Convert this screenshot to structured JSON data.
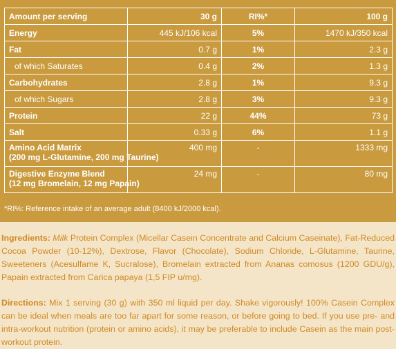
{
  "table": {
    "header": {
      "label": "Amount per serving",
      "serving": "30 g",
      "ri": "RI%*",
      "per100": "100 g"
    },
    "rows": [
      {
        "name": "Energy",
        "serving": "445 kJ/106 kcal",
        "ri": "5%",
        "per100": "1470 kJ/350 kcal",
        "bold": true
      },
      {
        "name": "Fat",
        "serving": "0.7 g",
        "ri": "1%",
        "per100": "2.3 g",
        "bold": true
      },
      {
        "name": "of which Saturates",
        "serving": "0.4 g",
        "ri": "2%",
        "per100": "1.3 g",
        "sub": true
      },
      {
        "name": "Carbohydrates",
        "serving": "2.8 g",
        "ri": "1%",
        "per100": "9.3 g",
        "bold": true
      },
      {
        "name": "of which Sugars",
        "serving": "2.8 g",
        "ri": "3%",
        "per100": "9.3 g",
        "sub": true
      },
      {
        "name": "Protein",
        "serving": "22 g",
        "ri": "44%",
        "per100": "73 g",
        "bold": true
      },
      {
        "name": "Salt",
        "serving": "0.33 g",
        "ri": "6%",
        "per100": "1.1 g",
        "bold": true
      },
      {
        "name_line1": "Amino Acid Matrix",
        "name_line2": "(200 mg L-Glutamine, 200 mg Taurine)",
        "serving": "400 mg",
        "ri": "-",
        "per100": "1333 mg",
        "bold": true
      },
      {
        "name_line1": "Digestive Enzyme Blend",
        "name_line2": "(12 mg Bromelain, 12 mg Papain)",
        "serving": "24 mg",
        "ri": "-",
        "per100": "80 mg",
        "bold": true
      }
    ]
  },
  "footnote": "*RI%: Reference intake of an average adult (8400 kJ/2000 kcal).",
  "ingredients": {
    "label": "Ingredients:",
    "milk": "Milk",
    "text": " Protein Complex (Micellar Casein Concentrate and Calcium Caseinate), Fat-Reduced Cocoa Powder (10-12%), Dextrose, Flavor (Chocolate), Sodium Chloride, L-Glutamine, Taurine, Sweeteners (Acesulfame K, Sucralose), Bromelain extracted from Ananas comosus (1200 GDU/g), Papain extracted from Carica papaya (1,5 FIP u/mg)."
  },
  "directions": {
    "label": "Directions:",
    "text": " Mix 1 serving (30 g) with 350 ml liquid per day. Shake vigorously! 100% Casein Complex can be ideal when meals are too far apart for some reason, or before going to bed. If you use pre- and intra-workout nutrition (protein or amino acids), it may be preferable to include Casein as the main post-workout protein."
  }
}
